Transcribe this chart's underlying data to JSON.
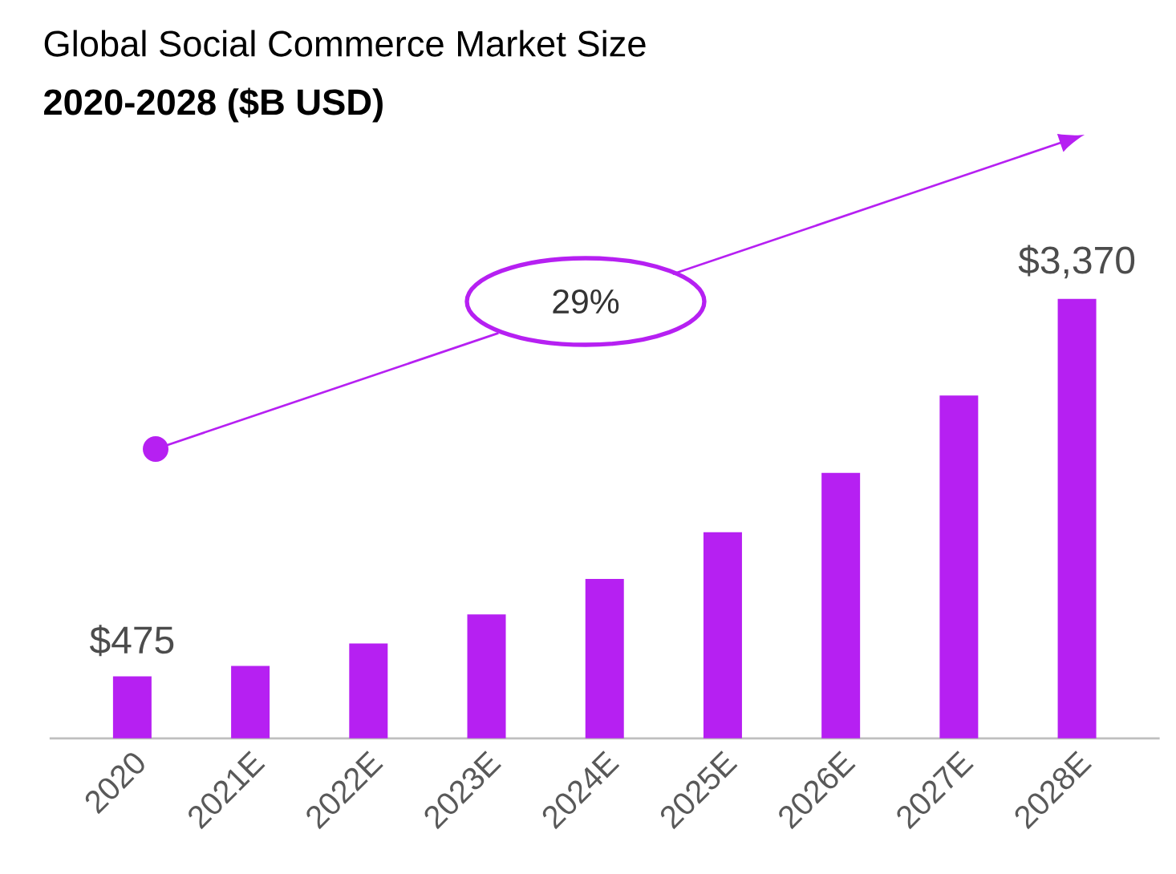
{
  "chart_data": {
    "type": "bar",
    "title": "Global Social Commerce Market Size",
    "subtitle": "**2020-2028  ($B USD)**",
    "categories": [
      "2020",
      "2021E",
      "2022E",
      "2023E",
      "2024E",
      "2025E",
      "2026E",
      "2027E",
      "2028E"
    ],
    "values": [
      475,
      555,
      728,
      950,
      1222,
      1580,
      2036,
      2628,
      3370
    ],
    "value_labels": [
      "$475",
      null,
      null,
      null,
      null,
      null,
      null,
      null,
      "$3,370"
    ],
    "color": "#b620f2",
    "annotations": [
      "29%"
    ],
    "grid": false
  }
}
